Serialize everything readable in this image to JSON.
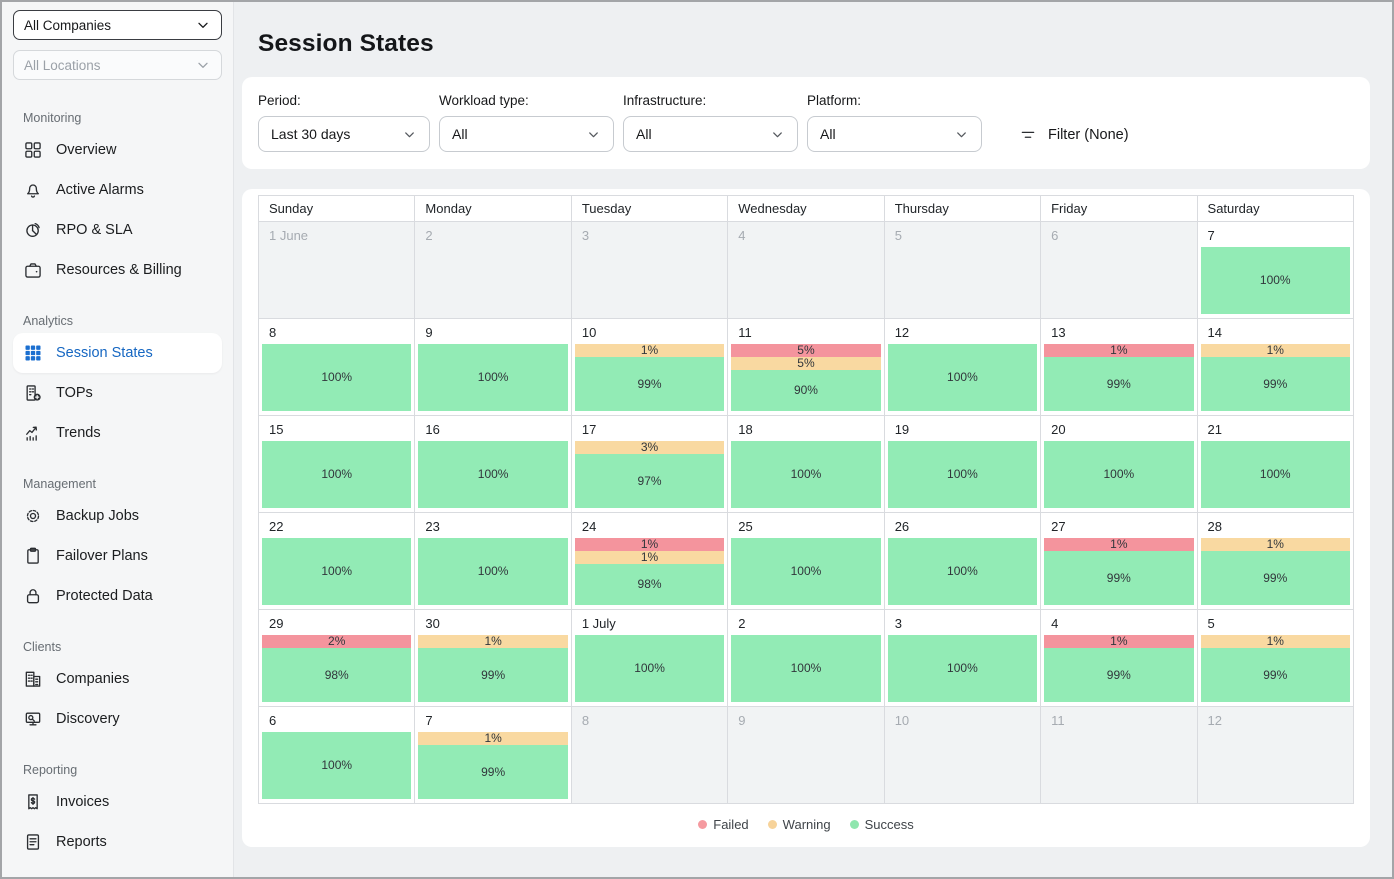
{
  "sidebar": {
    "company_select": {
      "value": "All Companies"
    },
    "location_select": {
      "value": "All Locations"
    },
    "sections": [
      {
        "label": "Monitoring",
        "items": [
          {
            "label": "Overview",
            "icon": "dashboard-icon",
            "active": false
          },
          {
            "label": "Active Alarms",
            "icon": "bell-icon",
            "active": false
          },
          {
            "label": "RPO & SLA",
            "icon": "pie-chart-icon",
            "active": false
          },
          {
            "label": "Resources & Billing",
            "icon": "wallet-icon",
            "active": false
          }
        ]
      },
      {
        "label": "Analytics",
        "items": [
          {
            "label": "Session States",
            "icon": "grid-icon",
            "active": true
          },
          {
            "label": "TOPs",
            "icon": "building-plus-icon",
            "active": false
          },
          {
            "label": "Trends",
            "icon": "trend-chart-icon",
            "active": false
          }
        ]
      },
      {
        "label": "Management",
        "items": [
          {
            "label": "Backup Jobs",
            "icon": "gear-icon",
            "active": false
          },
          {
            "label": "Failover Plans",
            "icon": "clipboard-icon",
            "active": false
          },
          {
            "label": "Protected Data",
            "icon": "lock-icon",
            "active": false
          }
        ]
      },
      {
        "label": "Clients",
        "items": [
          {
            "label": "Companies",
            "icon": "buildings-icon",
            "active": false
          },
          {
            "label": "Discovery",
            "icon": "monitor-search-icon",
            "active": false
          }
        ]
      },
      {
        "label": "Reporting",
        "items": [
          {
            "label": "Invoices",
            "icon": "invoice-icon",
            "active": false
          },
          {
            "label": "Reports",
            "icon": "report-icon",
            "active": false
          }
        ]
      }
    ]
  },
  "page": {
    "title": "Session States"
  },
  "filters": {
    "fields": [
      {
        "label": "Period:",
        "value": "Last 30 days"
      },
      {
        "label": "Workload type:",
        "value": "All"
      },
      {
        "label": "Infrastructure:",
        "value": "All"
      },
      {
        "label": "Platform:",
        "value": "All"
      }
    ],
    "filter_button_label": "Filter (None)"
  },
  "calendar": {
    "day_headers": [
      "Sunday",
      "Monday",
      "Tuesday",
      "Wednesday",
      "Thursday",
      "Friday",
      "Saturday"
    ],
    "weeks": [
      [
        {
          "day": "1 June",
          "out": true,
          "segments": []
        },
        {
          "day": "2",
          "out": true,
          "segments": []
        },
        {
          "day": "3",
          "out": true,
          "segments": []
        },
        {
          "day": "4",
          "out": true,
          "segments": []
        },
        {
          "day": "5",
          "out": true,
          "segments": []
        },
        {
          "day": "6",
          "out": true,
          "segments": []
        },
        {
          "day": "7",
          "out": false,
          "segments": [
            {
              "type": "success",
              "value": 100,
              "label": "100%"
            }
          ]
        }
      ],
      [
        {
          "day": "8",
          "out": false,
          "segments": [
            {
              "type": "success",
              "value": 100,
              "label": "100%"
            }
          ]
        },
        {
          "day": "9",
          "out": false,
          "segments": [
            {
              "type": "success",
              "value": 100,
              "label": "100%"
            }
          ]
        },
        {
          "day": "10",
          "out": false,
          "segments": [
            {
              "type": "warning",
              "value": 1,
              "label": "1%"
            },
            {
              "type": "success",
              "value": 99,
              "label": "99%"
            }
          ]
        },
        {
          "day": "11",
          "out": false,
          "segments": [
            {
              "type": "failed",
              "value": 5,
              "label": "5%"
            },
            {
              "type": "warning",
              "value": 5,
              "label": "5%"
            },
            {
              "type": "success",
              "value": 90,
              "label": "90%"
            }
          ]
        },
        {
          "day": "12",
          "out": false,
          "segments": [
            {
              "type": "success",
              "value": 100,
              "label": "100%"
            }
          ]
        },
        {
          "day": "13",
          "out": false,
          "segments": [
            {
              "type": "failed",
              "value": 1,
              "label": "1%"
            },
            {
              "type": "success",
              "value": 99,
              "label": "99%"
            }
          ]
        },
        {
          "day": "14",
          "out": false,
          "segments": [
            {
              "type": "warning",
              "value": 1,
              "label": "1%"
            },
            {
              "type": "success",
              "value": 99,
              "label": "99%"
            }
          ]
        }
      ],
      [
        {
          "day": "15",
          "out": false,
          "segments": [
            {
              "type": "success",
              "value": 100,
              "label": "100%"
            }
          ]
        },
        {
          "day": "16",
          "out": false,
          "segments": [
            {
              "type": "success",
              "value": 100,
              "label": "100%"
            }
          ]
        },
        {
          "day": "17",
          "out": false,
          "segments": [
            {
              "type": "warning",
              "value": 3,
              "label": "3%"
            },
            {
              "type": "success",
              "value": 97,
              "label": "97%"
            }
          ]
        },
        {
          "day": "18",
          "out": false,
          "segments": [
            {
              "type": "success",
              "value": 100,
              "label": "100%"
            }
          ]
        },
        {
          "day": "19",
          "out": false,
          "segments": [
            {
              "type": "success",
              "value": 100,
              "label": "100%"
            }
          ]
        },
        {
          "day": "20",
          "out": false,
          "segments": [
            {
              "type": "success",
              "value": 100,
              "label": "100%"
            }
          ]
        },
        {
          "day": "21",
          "out": false,
          "segments": [
            {
              "type": "success",
              "value": 100,
              "label": "100%"
            }
          ]
        }
      ],
      [
        {
          "day": "22",
          "out": false,
          "segments": [
            {
              "type": "success",
              "value": 100,
              "label": "100%"
            }
          ]
        },
        {
          "day": "23",
          "out": false,
          "segments": [
            {
              "type": "success",
              "value": 100,
              "label": "100%"
            }
          ]
        },
        {
          "day": "24",
          "out": false,
          "segments": [
            {
              "type": "failed",
              "value": 1,
              "label": "1%"
            },
            {
              "type": "warning",
              "value": 1,
              "label": "1%"
            },
            {
              "type": "success",
              "value": 98,
              "label": "98%"
            }
          ]
        },
        {
          "day": "25",
          "out": false,
          "segments": [
            {
              "type": "success",
              "value": 100,
              "label": "100%"
            }
          ]
        },
        {
          "day": "26",
          "out": false,
          "segments": [
            {
              "type": "success",
              "value": 100,
              "label": "100%"
            }
          ]
        },
        {
          "day": "27",
          "out": false,
          "segments": [
            {
              "type": "failed",
              "value": 1,
              "label": "1%"
            },
            {
              "type": "success",
              "value": 99,
              "label": "99%"
            }
          ]
        },
        {
          "day": "28",
          "out": false,
          "segments": [
            {
              "type": "warning",
              "value": 1,
              "label": "1%"
            },
            {
              "type": "success",
              "value": 99,
              "label": "99%"
            }
          ]
        }
      ],
      [
        {
          "day": "29",
          "out": false,
          "segments": [
            {
              "type": "failed",
              "value": 2,
              "label": "2%"
            },
            {
              "type": "success",
              "value": 98,
              "label": "98%"
            }
          ]
        },
        {
          "day": "30",
          "out": false,
          "segments": [
            {
              "type": "warning",
              "value": 1,
              "label": "1%"
            },
            {
              "type": "success",
              "value": 99,
              "label": "99%"
            }
          ]
        },
        {
          "day": "1 July",
          "out": false,
          "segments": [
            {
              "type": "success",
              "value": 100,
              "label": "100%"
            }
          ]
        },
        {
          "day": "2",
          "out": false,
          "segments": [
            {
              "type": "success",
              "value": 100,
              "label": "100%"
            }
          ]
        },
        {
          "day": "3",
          "out": false,
          "segments": [
            {
              "type": "success",
              "value": 100,
              "label": "100%"
            }
          ]
        },
        {
          "day": "4",
          "out": false,
          "segments": [
            {
              "type": "failed",
              "value": 1,
              "label": "1%"
            },
            {
              "type": "success",
              "value": 99,
              "label": "99%"
            }
          ]
        },
        {
          "day": "5",
          "out": false,
          "segments": [
            {
              "type": "warning",
              "value": 1,
              "label": "1%"
            },
            {
              "type": "success",
              "value": 99,
              "label": "99%"
            }
          ]
        }
      ],
      [
        {
          "day": "6",
          "out": false,
          "segments": [
            {
              "type": "success",
              "value": 100,
              "label": "100%"
            }
          ]
        },
        {
          "day": "7",
          "out": false,
          "segments": [
            {
              "type": "warning",
              "value": 1,
              "label": "1%"
            },
            {
              "type": "success",
              "value": 99,
              "label": "99%"
            }
          ]
        },
        {
          "day": "8",
          "out": true,
          "segments": []
        },
        {
          "day": "9",
          "out": true,
          "segments": []
        },
        {
          "day": "10",
          "out": true,
          "segments": []
        },
        {
          "day": "11",
          "out": true,
          "segments": []
        },
        {
          "day": "12",
          "out": true,
          "segments": []
        }
      ]
    ]
  },
  "legend": [
    {
      "label": "Failed",
      "type": "failed"
    },
    {
      "label": "Warning",
      "type": "warning"
    },
    {
      "label": "Success",
      "type": "success"
    }
  ],
  "colors": {
    "failed": "#f4949d",
    "warning": "#f9d9a1",
    "success": "#92ebb5",
    "legend_failed_dot": "#f59aa0",
    "legend_warning_dot": "#f7d39a",
    "legend_success_dot": "#8fe6ae",
    "accent_blue": "#1b6fd0",
    "out_of_range_bg": "#f1f3f4"
  }
}
